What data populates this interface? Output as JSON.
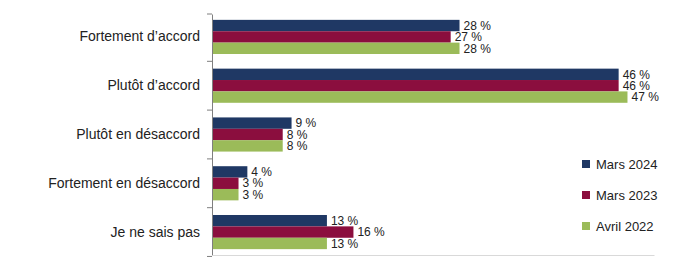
{
  "chart_data": {
    "type": "bar",
    "orientation": "horizontal",
    "categories": [
      "Fortement d’accord",
      "Plutôt d’accord",
      "Plutôt en désaccord",
      "Fortement en désaccord",
      "Je ne sais pas"
    ],
    "series": [
      {
        "name": "Mars 2024",
        "color": "#1f3864",
        "values": [
          28,
          46,
          9,
          4,
          13
        ],
        "value_labels": [
          "28 %",
          "46 %",
          "9 %",
          "4 %",
          "13 %"
        ]
      },
      {
        "name": "Mars 2023",
        "color": "#8b0e3e",
        "values": [
          27,
          46,
          8,
          3,
          16
        ],
        "value_labels": [
          "27 %",
          "46 %",
          "8 %",
          "3 %",
          "16 %"
        ]
      },
      {
        "name": "Avril 2022",
        "color": "#9bbb59",
        "values": [
          28,
          47,
          8,
          3,
          13
        ],
        "value_labels": [
          "28 %",
          "47 %",
          "8 %",
          "3 %",
          "13 %"
        ]
      }
    ],
    "xlim": [
      0,
      50
    ],
    "data_labels": true,
    "tick_labels": "y",
    "legend": "right"
  }
}
